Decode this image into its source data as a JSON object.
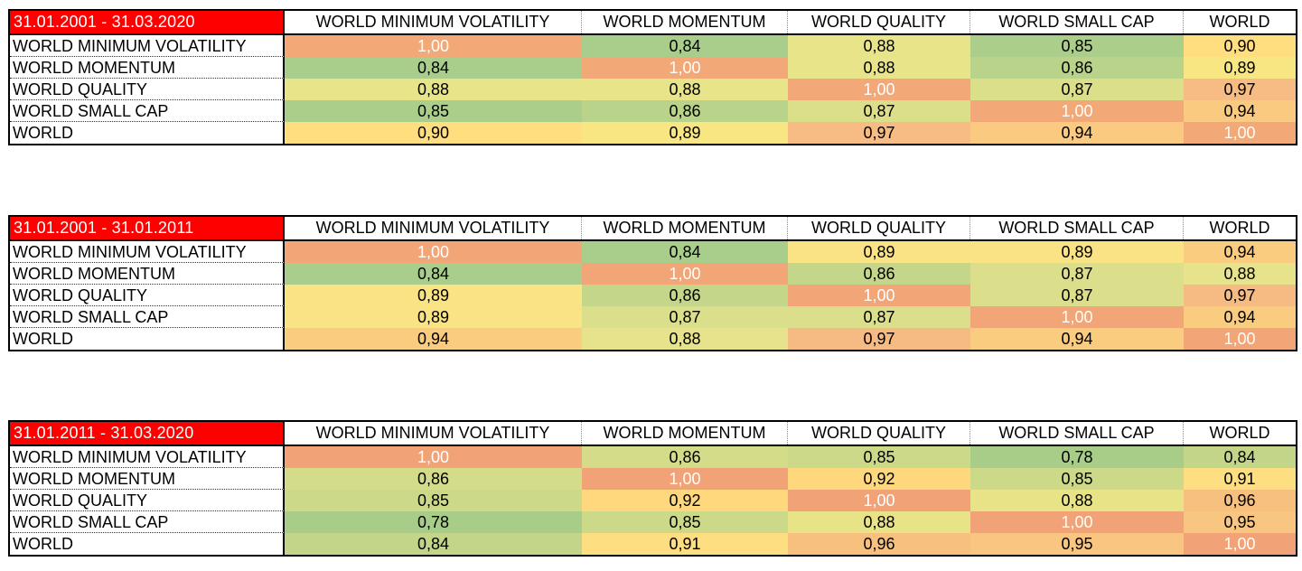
{
  "colors": {
    "page_background": "#FFFFFF",
    "period_bg": "#FF0000",
    "period_text": "#FFFFFF",
    "diagonal_value_text": "#FFFFFF",
    "value_text": "#000000",
    "border": "#000000"
  },
  "column_headers": [
    "WORLD MINIMUM VOLATILITY",
    "WORLD MOMENTUM",
    "WORLD QUALITY",
    "WORLD SMALL CAP",
    "WORLD"
  ],
  "row_labels": [
    "WORLD MINIMUM VOLATILITY",
    "WORLD MOMENTUM",
    "WORLD QUALITY",
    "WORLD SMALL CAP",
    "WORLD"
  ],
  "tables": [
    {
      "period": "31.01.2001 - 31.03.2020",
      "values": [
        [
          "1,00",
          "0,84",
          "0,88",
          "0,85",
          "0,90"
        ],
        [
          "0,84",
          "1,00",
          "0,88",
          "0,86",
          "0,89"
        ],
        [
          "0,88",
          "0,88",
          "1,00",
          "0,87",
          "0,97"
        ],
        [
          "0,85",
          "0,86",
          "0,87",
          "1,00",
          "0,94"
        ],
        [
          "0,90",
          "0,89",
          "0,97",
          "0,94",
          "1,00"
        ]
      ],
      "palette": {
        "1,00": "#F3A877",
        "0,84": "#A9CE8C",
        "0,85": "#ABCF8B",
        "0,86": "#B9D38A",
        "0,87": "#DCDF89",
        "0,88": "#E8E48A",
        "0,89": "#F8E683",
        "0,90": "#FFDE7F",
        "0,94": "#F9CA80",
        "0,97": "#F6BC83"
      }
    },
    {
      "period": "31.01.2001 - 31.01.2011",
      "values": [
        [
          "1,00",
          "0,84",
          "0,89",
          "0,89",
          "0,94"
        ],
        [
          "0,84",
          "1,00",
          "0,86",
          "0,87",
          "0,88"
        ],
        [
          "0,89",
          "0,86",
          "1,00",
          "0,87",
          "0,97"
        ],
        [
          "0,89",
          "0,87",
          "0,87",
          "1,00",
          "0,94"
        ],
        [
          "0,94",
          "0,88",
          "0,97",
          "0,94",
          "1,00"
        ]
      ],
      "palette": {
        "1,00": "#F2A577",
        "0,84": "#A9CE8C",
        "0,86": "#C4D689",
        "0,87": "#DBDE8A",
        "0,88": "#E7E38C",
        "0,89": "#F9E385",
        "0,94": "#FACC7F",
        "0,97": "#F5BB82"
      }
    },
    {
      "period": "31.01.2011 - 31.03.2020",
      "values": [
        [
          "1,00",
          "0,86",
          "0,85",
          "0,78",
          "0,84"
        ],
        [
          "0,86",
          "1,00",
          "0,92",
          "0,85",
          "0,91"
        ],
        [
          "0,85",
          "0,92",
          "1,00",
          "0,88",
          "0,96"
        ],
        [
          "0,78",
          "0,85",
          "0,88",
          "1,00",
          "0,95"
        ],
        [
          "0,84",
          "0,91",
          "0,96",
          "0,95",
          "1,00"
        ]
      ],
      "palette": {
        "1,00": "#F1A377",
        "0,78": "#A7CD89",
        "0,84": "#C3D588",
        "0,85": "#CBD989",
        "0,86": "#D5DC89",
        "0,88": "#E9E388",
        "0,91": "#FDDE80",
        "0,92": "#FFD87E",
        "0,95": "#F8C681",
        "0,96": "#F7C07F"
      }
    }
  ],
  "chart_data": [
    {
      "type": "heatmap",
      "title": "31.01.2001 - 31.03.2020",
      "rows": [
        "WORLD MINIMUM VOLATILITY",
        "WORLD MOMENTUM",
        "WORLD QUALITY",
        "WORLD SMALL CAP",
        "WORLD"
      ],
      "columns": [
        "WORLD MINIMUM VOLATILITY",
        "WORLD MOMENTUM",
        "WORLD QUALITY",
        "WORLD SMALL CAP",
        "WORLD"
      ],
      "values": [
        [
          1.0,
          0.84,
          0.88,
          0.85,
          0.9
        ],
        [
          0.84,
          1.0,
          0.88,
          0.86,
          0.89
        ],
        [
          0.88,
          0.88,
          1.0,
          0.87,
          0.97
        ],
        [
          0.85,
          0.86,
          0.87,
          1.0,
          0.94
        ],
        [
          0.9,
          0.89,
          0.97,
          0.94,
          1.0
        ]
      ],
      "value_range": [
        0.84,
        1.0
      ],
      "colorscale": "green-yellow-orange (low to high)"
    },
    {
      "type": "heatmap",
      "title": "31.01.2001 - 31.01.2011",
      "rows": [
        "WORLD MINIMUM VOLATILITY",
        "WORLD MOMENTUM",
        "WORLD QUALITY",
        "WORLD SMALL CAP",
        "WORLD"
      ],
      "columns": [
        "WORLD MINIMUM VOLATILITY",
        "WORLD MOMENTUM",
        "WORLD QUALITY",
        "WORLD SMALL CAP",
        "WORLD"
      ],
      "values": [
        [
          1.0,
          0.84,
          0.89,
          0.89,
          0.94
        ],
        [
          0.84,
          1.0,
          0.86,
          0.87,
          0.88
        ],
        [
          0.89,
          0.86,
          1.0,
          0.87,
          0.97
        ],
        [
          0.89,
          0.87,
          0.87,
          1.0,
          0.94
        ],
        [
          0.94,
          0.88,
          0.97,
          0.94,
          1.0
        ]
      ],
      "value_range": [
        0.84,
        1.0
      ],
      "colorscale": "green-yellow-orange (low to high)"
    },
    {
      "type": "heatmap",
      "title": "31.01.2011 - 31.03.2020",
      "rows": [
        "WORLD MINIMUM VOLATILITY",
        "WORLD MOMENTUM",
        "WORLD QUALITY",
        "WORLD SMALL CAP",
        "WORLD"
      ],
      "columns": [
        "WORLD MINIMUM VOLATILITY",
        "WORLD MOMENTUM",
        "WORLD QUALITY",
        "WORLD SMALL CAP",
        "WORLD"
      ],
      "values": [
        [
          1.0,
          0.86,
          0.85,
          0.78,
          0.84
        ],
        [
          0.86,
          1.0,
          0.92,
          0.85,
          0.91
        ],
        [
          0.85,
          0.92,
          1.0,
          0.88,
          0.96
        ],
        [
          0.78,
          0.85,
          0.88,
          1.0,
          0.95
        ],
        [
          0.84,
          0.91,
          0.96,
          0.95,
          1.0
        ]
      ],
      "value_range": [
        0.78,
        1.0
      ],
      "colorscale": "green-yellow-orange (low to high)"
    }
  ]
}
